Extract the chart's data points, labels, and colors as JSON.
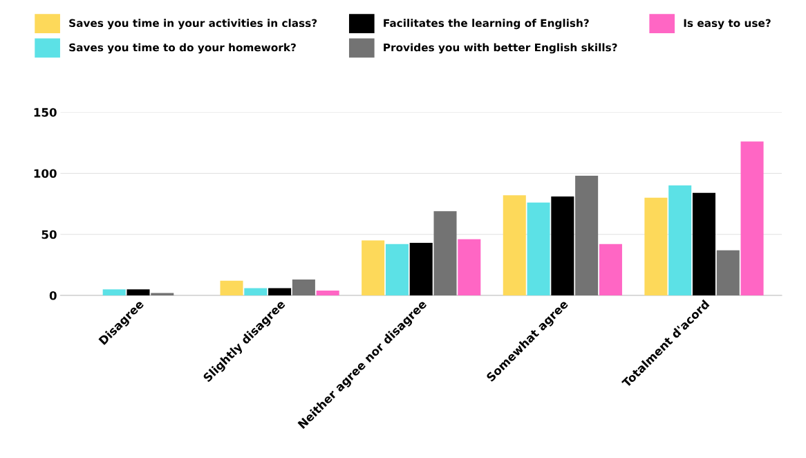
{
  "chart_data": {
    "type": "bar",
    "categories": [
      "Disagree",
      "Slightly disagree",
      "Neither agree nor disagree",
      "Somewhat agree",
      "Totalment d'acord"
    ],
    "series": [
      {
        "name": "Saves you time in your activities in class?",
        "color": "#fdd95a",
        "values": [
          0,
          12,
          45,
          82,
          80
        ]
      },
      {
        "name": "Saves you time to do your homework?",
        "color": "#5ce1e6",
        "values": [
          5,
          6,
          42,
          76,
          90
        ]
      },
      {
        "name": "Facilitates the learning of English?",
        "color": "#000000",
        "values": [
          5,
          6,
          43,
          81,
          84
        ]
      },
      {
        "name": "Provides you with better English skills?",
        "color": "#737373",
        "values": [
          2,
          13,
          69,
          98,
          37
        ]
      },
      {
        "name": "Is easy to use?",
        "color": "#ff66c4",
        "values": [
          0,
          4,
          46,
          42,
          126
        ]
      }
    ],
    "ylim": [
      0,
      150
    ],
    "yticks": [
      0,
      50,
      100,
      150
    ],
    "grid": "y",
    "legend": "top"
  }
}
